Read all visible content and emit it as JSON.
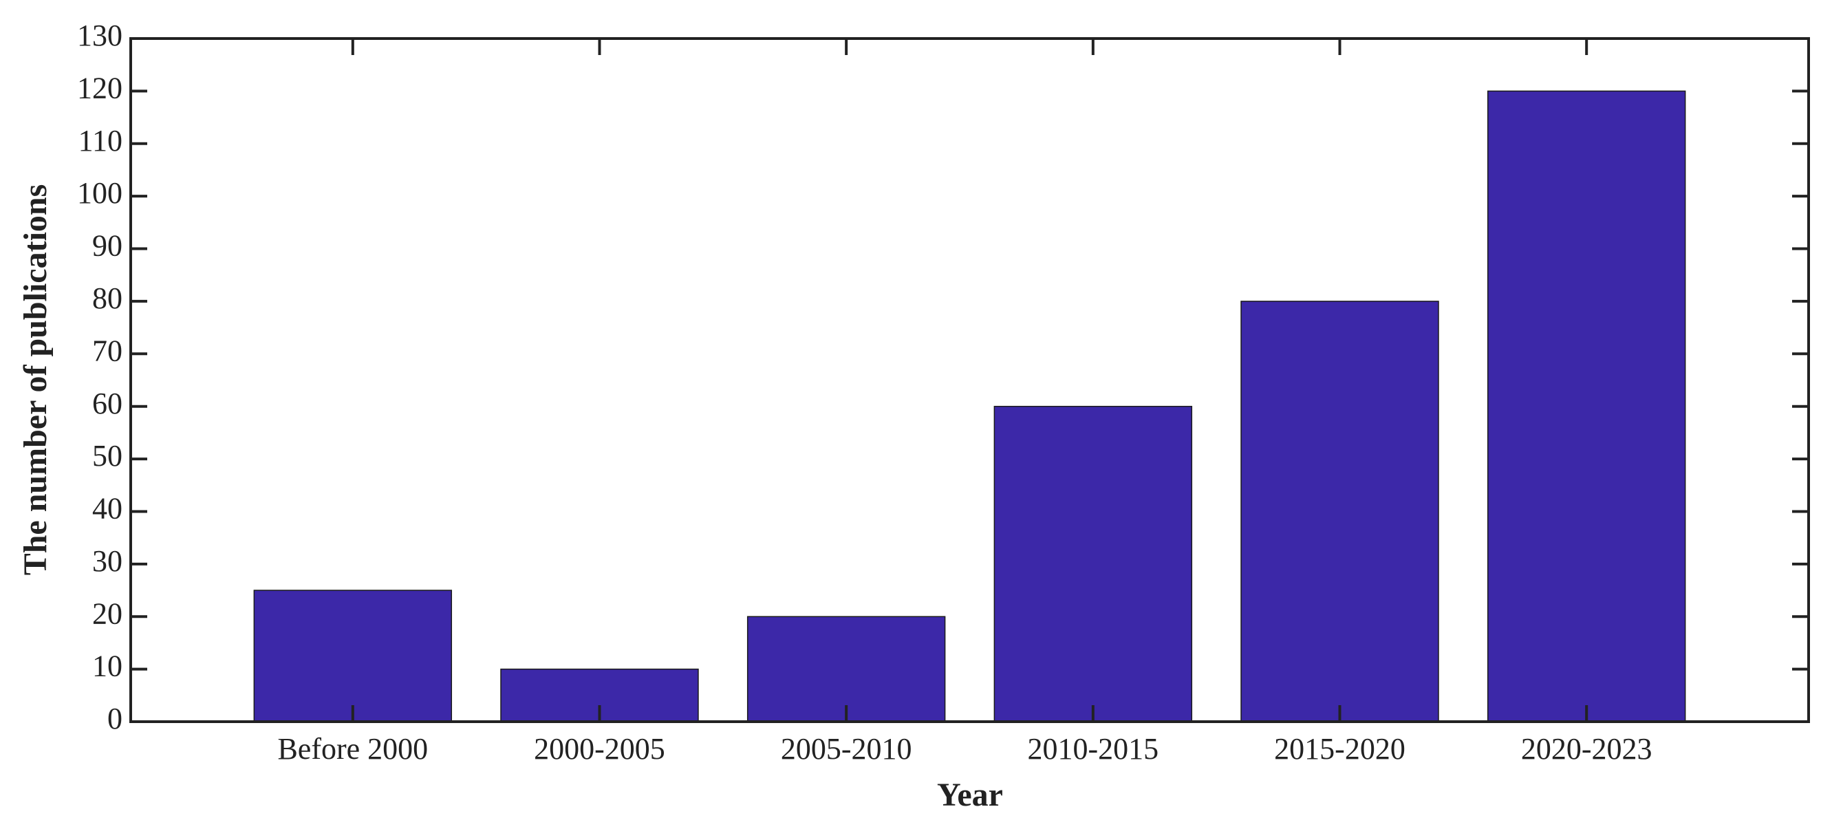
{
  "chart_data": {
    "type": "bar",
    "xlabel": "Year",
    "ylabel": "The number of publications",
    "categories": [
      "Before 2000",
      "2000-2005",
      "2005-2010",
      "2010-2015",
      "2015-2020",
      "2020-2023"
    ],
    "values": [
      25,
      10,
      20,
      60,
      80,
      120
    ],
    "color": "#3c28a8",
    "ylim": [
      0,
      130
    ],
    "yticks": [
      0,
      10,
      20,
      30,
      40,
      50,
      60,
      70,
      80,
      90,
      100,
      110,
      120,
      130
    ],
    "grid": false
  }
}
